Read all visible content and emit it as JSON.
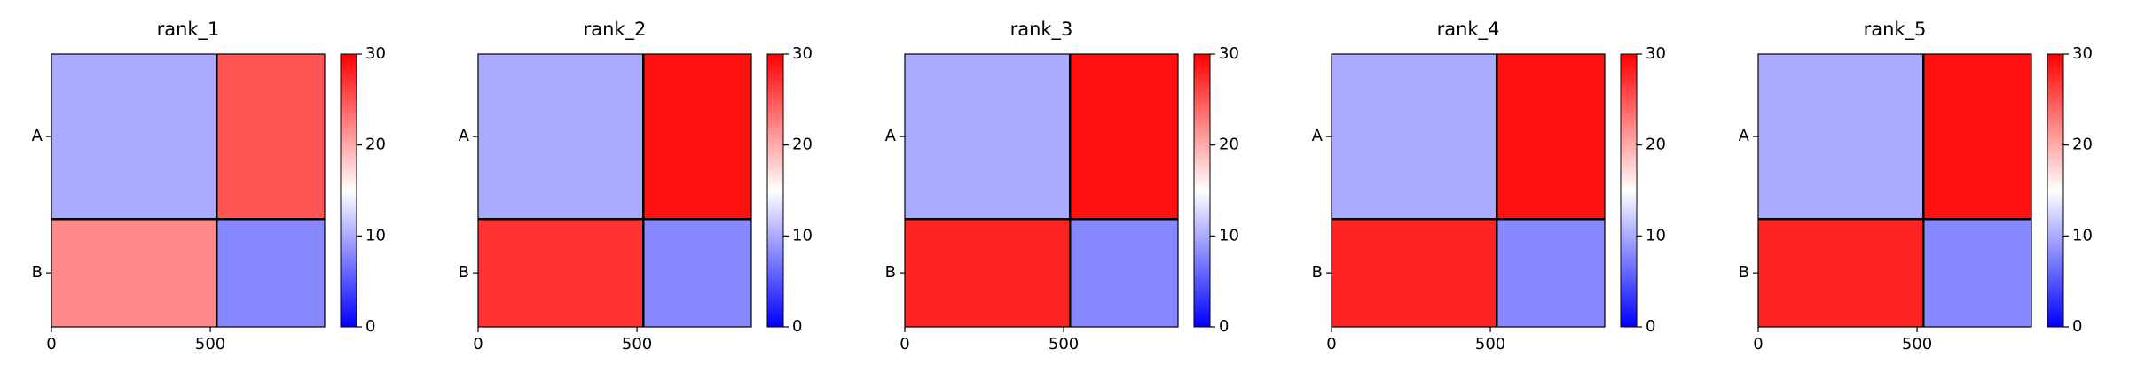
{
  "chart_data": [
    {
      "type": "heatmap",
      "title": "rank_1",
      "categories": [
        "A",
        "B"
      ],
      "xlim": [
        0,
        860
      ],
      "chain_breaks": [
        520
      ],
      "xticks": [
        0,
        500
      ],
      "values": [
        [
          10,
          25
        ],
        [
          22,
          8
        ]
      ],
      "clim": [
        0,
        30
      ],
      "cticks": [
        0,
        10,
        20,
        30
      ],
      "colors": [
        "#0000ff",
        "#ffffff",
        "#ff0000"
      ]
    },
    {
      "type": "heatmap",
      "title": "rank_2",
      "categories": [
        "A",
        "B"
      ],
      "xlim": [
        0,
        860
      ],
      "chain_breaks": [
        520
      ],
      "xticks": [
        0,
        500
      ],
      "values": [
        [
          10,
          29
        ],
        [
          27,
          8
        ]
      ],
      "clim": [
        0,
        30
      ],
      "cticks": [
        0,
        10,
        20,
        30
      ],
      "colors": [
        "#0000ff",
        "#ffffff",
        "#ff0000"
      ]
    },
    {
      "type": "heatmap",
      "title": "rank_3",
      "categories": [
        "A",
        "B"
      ],
      "xlim": [
        0,
        860
      ],
      "chain_breaks": [
        520
      ],
      "xticks": [
        0,
        500
      ],
      "values": [
        [
          10,
          29
        ],
        [
          28,
          8
        ]
      ],
      "clim": [
        0,
        30
      ],
      "cticks": [
        0,
        10,
        20,
        30
      ],
      "colors": [
        "#0000ff",
        "#ffffff",
        "#ff0000"
      ]
    },
    {
      "type": "heatmap",
      "title": "rank_4",
      "categories": [
        "A",
        "B"
      ],
      "xlim": [
        0,
        860
      ],
      "chain_breaks": [
        520
      ],
      "xticks": [
        0,
        500
      ],
      "values": [
        [
          10,
          29
        ],
        [
          28,
          8
        ]
      ],
      "clim": [
        0,
        30
      ],
      "cticks": [
        0,
        10,
        20,
        30
      ],
      "colors": [
        "#0000ff",
        "#ffffff",
        "#ff0000"
      ]
    },
    {
      "type": "heatmap",
      "title": "rank_5",
      "categories": [
        "A",
        "B"
      ],
      "xlim": [
        0,
        860
      ],
      "chain_breaks": [
        520
      ],
      "xticks": [
        0,
        500
      ],
      "values": [
        [
          10,
          29
        ],
        [
          28,
          8
        ]
      ],
      "clim": [
        0,
        30
      ],
      "cticks": [
        0,
        10,
        20,
        30
      ],
      "colors": [
        "#0000ff",
        "#ffffff",
        "#ff0000"
      ]
    }
  ]
}
